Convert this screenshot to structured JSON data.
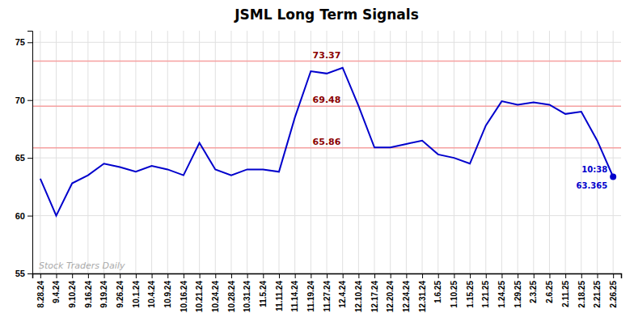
{
  "chart_data": {
    "type": "line",
    "title": "JSML Long Term Signals",
    "categories": [
      "8.28.24",
      "9.4.24",
      "9.10.24",
      "9.16.24",
      "9.19.24",
      "9.26.24",
      "10.1.24",
      "10.4.24",
      "10.9.24",
      "10.16.24",
      "10.21.24",
      "10.24.24",
      "10.28.24",
      "10.31.24",
      "11.5.24",
      "11.11.24",
      "11.14.24",
      "11.19.24",
      "11.27.24",
      "12.4.24",
      "12.10.24",
      "12.17.24",
      "12.20.24",
      "12.24.24",
      "12.31.24",
      "1.6.25",
      "1.10.25",
      "1.15.25",
      "1.21.25",
      "1.24.25",
      "1.29.25",
      "2.3.25",
      "2.6.25",
      "2.11.25",
      "2.18.25",
      "2.21.25",
      "2.26.25"
    ],
    "values": [
      63.2,
      60.0,
      62.8,
      63.5,
      64.5,
      64.2,
      63.8,
      64.3,
      64.0,
      63.5,
      66.3,
      64.0,
      63.5,
      64.0,
      64.0,
      63.8,
      68.5,
      72.5,
      72.3,
      72.8,
      69.5,
      65.9,
      65.9,
      66.2,
      66.5,
      65.3,
      65.0,
      64.5,
      67.8,
      69.9,
      69.6,
      69.8,
      69.6,
      68.8,
      69.0,
      66.5,
      63.365
    ],
    "color": "#0000cc",
    "hlines": {
      "values": [
        73.37,
        69.48,
        65.86
      ],
      "color": "#f5a0a0",
      "label_color": "#8b0000"
    },
    "last_point_label": "10:38",
    "watermark": "Stock Traders Daily",
    "ylim": [
      55,
      76
    ],
    "yticks": [
      55,
      60,
      65,
      70,
      75
    ],
    "grid": true
  }
}
